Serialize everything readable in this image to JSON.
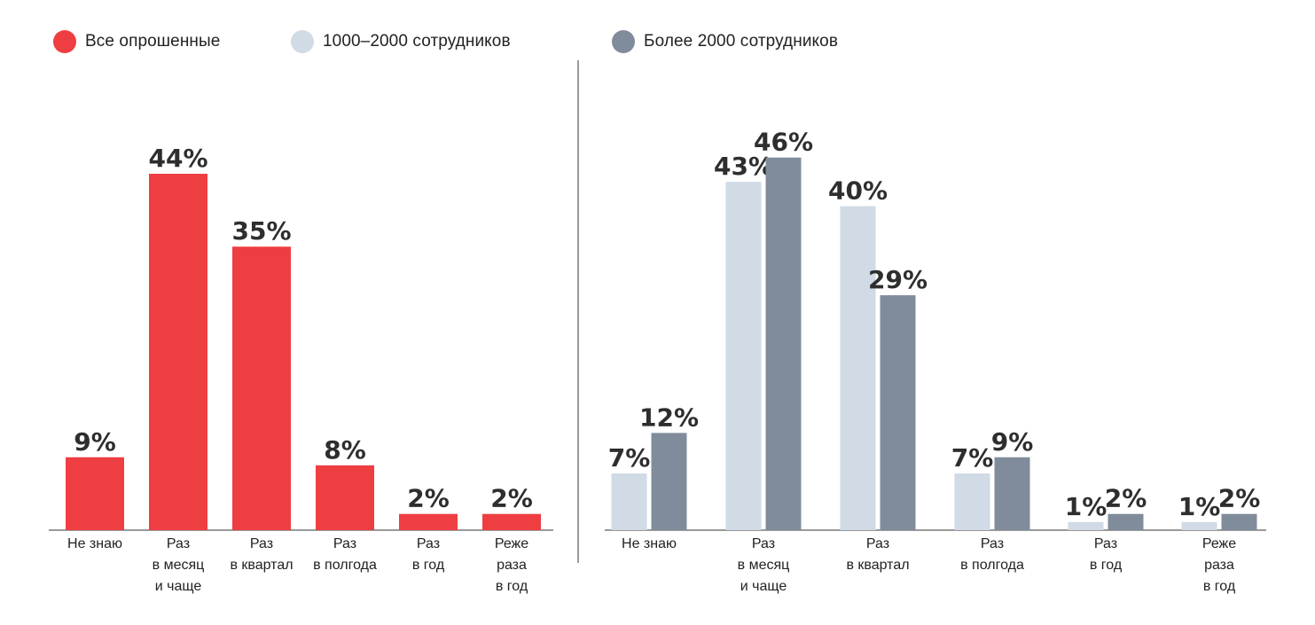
{
  "legend": [
    {
      "label": "Все опрошенные",
      "color": "#ef3e42"
    },
    {
      "label": "1000–2000 сотрудников",
      "color": "#d0dbe5"
    },
    {
      "label": "Более 2000 сотрудников",
      "color": "#808c9b"
    }
  ],
  "chart_data": [
    {
      "type": "bar",
      "categories": [
        [
          "Не знаю"
        ],
        [
          "Раз",
          "в месяц",
          "и чаще"
        ],
        [
          "Раз",
          "в квартал"
        ],
        [
          "Раз",
          "в полгода"
        ],
        [
          "Раз",
          "в год"
        ],
        [
          "Реже",
          "раза",
          "в год"
        ]
      ],
      "series": [
        {
          "name": "Все опрошенные",
          "color": "#ef3e42",
          "values": [
            9,
            44,
            35,
            8,
            2,
            2
          ],
          "labels": [
            "9%",
            "44%",
            "35%",
            "8%",
            "2%",
            "2%"
          ]
        }
      ],
      "ylim": [
        0,
        50
      ],
      "grid": false
    },
    {
      "type": "bar",
      "categories": [
        [
          "Не знаю"
        ],
        [
          "Раз",
          "в месяц",
          "и чаще"
        ],
        [
          "Раз",
          "в квартал"
        ],
        [
          "Раз",
          "в полгода"
        ],
        [
          "Раз",
          "в год"
        ],
        [
          "Реже",
          "раза",
          "в год"
        ]
      ],
      "series": [
        {
          "name": "1000–2000 сотрудников",
          "color": "#d0dbe5",
          "values": [
            7,
            43,
            40,
            7,
            1,
            1
          ],
          "labels": [
            "7%",
            "43%",
            "40%",
            "7%",
            "1%",
            "1%"
          ]
        },
        {
          "name": "Более 2000 сотрудников",
          "color": "#808c9b",
          "values": [
            12,
            46,
            29,
            9,
            2,
            2
          ],
          "labels": [
            "12%",
            "46%",
            "29%",
            "9%",
            "2%",
            "2%"
          ]
        }
      ],
      "ylim": [
        0,
        50
      ],
      "grid": false
    }
  ]
}
